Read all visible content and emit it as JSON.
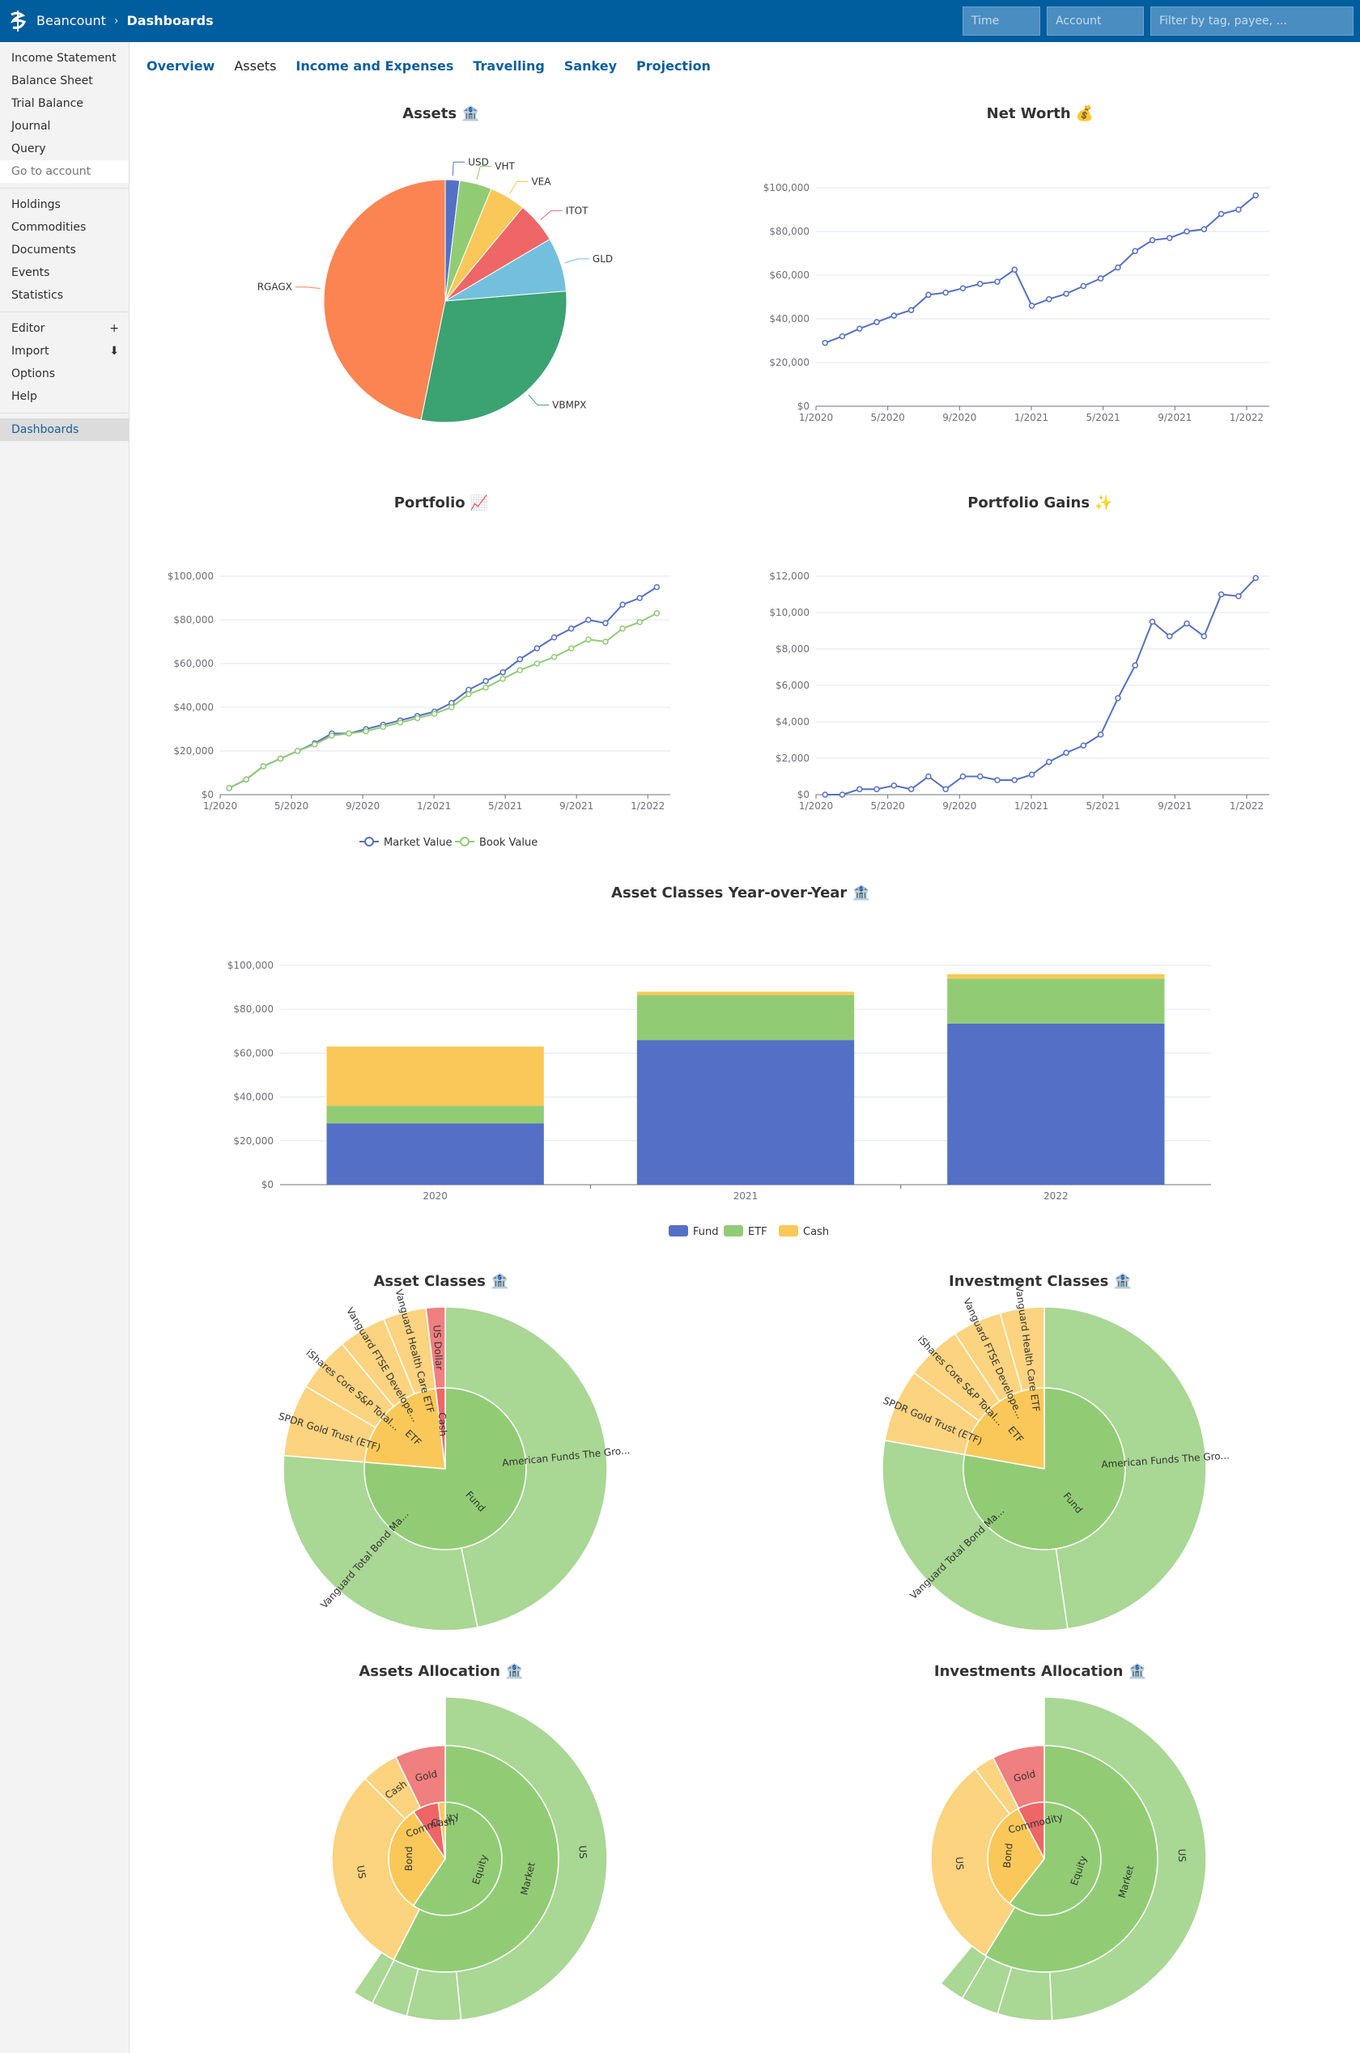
{
  "header": {
    "app_name": "Beancount",
    "separator": "›",
    "page": "Dashboards",
    "time_placeholder": "Time",
    "account_placeholder": "Account",
    "filter_placeholder": "Filter by tag, payee, ..."
  },
  "sidebar": {
    "group1": [
      "Income Statement",
      "Balance Sheet",
      "Trial Balance",
      "Journal",
      "Query"
    ],
    "go_to_account": "Go to account",
    "group2": [
      "Holdings",
      "Commodities",
      "Documents",
      "Events",
      "Statistics"
    ],
    "editor": "Editor",
    "editor_icon": "+",
    "import": "Import",
    "import_icon": "⬇",
    "options": "Options",
    "help": "Help",
    "dashboards": "Dashboards"
  },
  "tabs": [
    "Overview",
    "Assets",
    "Income and Expenses",
    "Travelling",
    "Sankey",
    "Projection"
  ],
  "colors": {
    "blue": "#5470c6",
    "green": "#91cc75",
    "yellow": "#fac858",
    "red": "#ee6666",
    "cyan": "#73c0de",
    "teal": "#3ba272",
    "orange": "#fc8452"
  },
  "chart_data": [
    {
      "id": "assets",
      "type": "pie",
      "title": "Assets 🏦",
      "slices": [
        {
          "label": "USD",
          "value": 1.9
        },
        {
          "label": "VHT",
          "value": 4.3
        },
        {
          "label": "VEA",
          "value": 4.8
        },
        {
          "label": "ITOT",
          "value": 5.5
        },
        {
          "label": "GLD",
          "value": 7.2
        },
        {
          "label": "VBMPX",
          "value": 29.5
        },
        {
          "label": "RGAGX",
          "value": 46.8
        }
      ]
    },
    {
      "id": "networth",
      "type": "line",
      "title": "Net Worth 💰",
      "ylim": [
        0,
        100000
      ],
      "yticks": [
        "$0",
        "$20,000",
        "$40,000",
        "$60,000",
        "$80,000",
        "$100,000"
      ],
      "xticks": [
        "1/2020",
        "5/2020",
        "9/2020",
        "1/2021",
        "5/2021",
        "9/2021",
        "1/2022"
      ],
      "series": [
        {
          "name": "Net Worth",
          "values": [
            29000,
            32000,
            35500,
            38500,
            41500,
            44000,
            51000,
            52000,
            54000,
            56000,
            57000,
            62500,
            46000,
            49000,
            51500,
            55000,
            58500,
            63500,
            71000,
            76000,
            77000,
            80000,
            81000,
            88000,
            90000,
            96500
          ]
        }
      ]
    },
    {
      "id": "portfolio",
      "type": "line",
      "title": "Portfolio 📈",
      "ylim": [
        0,
        100000
      ],
      "yticks": [
        "$0",
        "$20,000",
        "$40,000",
        "$60,000",
        "$80,000",
        "$100,000"
      ],
      "xticks": [
        "1/2020",
        "5/2020",
        "9/2020",
        "1/2021",
        "5/2021",
        "9/2021",
        "1/2022"
      ],
      "series": [
        {
          "name": "Market Value",
          "values": [
            3000,
            7000,
            13000,
            16500,
            20000,
            23500,
            28000,
            28000,
            30000,
            32000,
            34000,
            36000,
            38000,
            42000,
            48000,
            52000,
            56000,
            62000,
            67000,
            72000,
            76000,
            80000,
            78500,
            87000,
            90000,
            95000
          ]
        },
        {
          "name": "Book Value",
          "values": [
            3000,
            7000,
            13000,
            16500,
            20000,
            23000,
            27000,
            28000,
            29000,
            31000,
            33000,
            35000,
            37000,
            40000,
            46000,
            49000,
            53000,
            57000,
            60000,
            63000,
            67000,
            71000,
            70000,
            76000,
            79000,
            83000
          ]
        }
      ]
    },
    {
      "id": "gains",
      "type": "line",
      "title": "Portfolio Gains ✨",
      "ylim": [
        0,
        12000
      ],
      "yticks": [
        "$0",
        "$2,000",
        "$4,000",
        "$6,000",
        "$8,000",
        "$10,000",
        "$12,000"
      ],
      "xticks": [
        "1/2020",
        "5/2020",
        "9/2020",
        "1/2021",
        "5/2021",
        "9/2021",
        "1/2022"
      ],
      "series": [
        {
          "name": "Gains",
          "values": [
            0,
            0,
            300,
            300,
            500,
            300,
            1000,
            300,
            1000,
            1000,
            800,
            800,
            1100,
            1800,
            2300,
            2700,
            3300,
            5300,
            7100,
            9500,
            8700,
            9400,
            8700,
            11000,
            10900,
            11900
          ]
        }
      ]
    },
    {
      "id": "yoy",
      "type": "bar",
      "title": "Asset Classes Year-over-Year 🏦",
      "categories": [
        "2020",
        "2021",
        "2022"
      ],
      "ylim": [
        0,
        100000
      ],
      "yticks": [
        "$0",
        "$20,000",
        "$40,000",
        "$60,000",
        "$80,000",
        "$100,000"
      ],
      "series": [
        {
          "name": "Fund",
          "values": [
            28000,
            66000,
            73500
          ]
        },
        {
          "name": "ETF",
          "values": [
            8000,
            20500,
            20500
          ]
        },
        {
          "name": "Cash",
          "values": [
            27000,
            1500,
            2000
          ]
        }
      ]
    },
    {
      "id": "asset_classes",
      "type": "sunburst",
      "title": "Asset Classes 🏦",
      "inner": [
        {
          "label": "Fund",
          "value": 76.3
        },
        {
          "label": "ETF",
          "value": 21.8
        },
        {
          "label": "Cash",
          "value": 1.9
        }
      ],
      "outer": [
        {
          "label": "American Funds The Gro...",
          "value": 46.8
        },
        {
          "label": "Vanguard Total Bond Ma...",
          "value": 29.5
        },
        {
          "label": "SPDR Gold Trust (ETF)",
          "value": 7.2
        },
        {
          "label": "iShares Core S&P Total...",
          "value": 5.5
        },
        {
          "label": "Vanguard FTSE Develope...",
          "value": 4.8
        },
        {
          "label": "Vanguard Health Care ETF",
          "value": 4.3
        },
        {
          "label": "US Dollar",
          "value": 1.9
        }
      ]
    },
    {
      "id": "investment_classes",
      "type": "sunburst",
      "title": "Investment Classes 🏦",
      "inner": [
        {
          "label": "Fund",
          "value": 77.8
        },
        {
          "label": "ETF",
          "value": 22.2
        }
      ],
      "outer": [
        {
          "label": "American Funds The Gro...",
          "value": 47.7
        },
        {
          "label": "Vanguard Total Bond Ma...",
          "value": 30.1
        },
        {
          "label": "SPDR Gold Trust (ETF)",
          "value": 7.3
        },
        {
          "label": "iShares Core S&P Total...",
          "value": 5.6
        },
        {
          "label": "Vanguard FTSE Develope...",
          "value": 4.9
        },
        {
          "label": "Vanguard Health Care ETF",
          "value": 4.4
        }
      ]
    },
    {
      "id": "assets_alloc",
      "type": "sunburst",
      "title": "Assets Allocation 🏦",
      "inner": [
        {
          "label": "Equity",
          "value": 57.5
        },
        {
          "label": "Bond",
          "value": 30
        },
        {
          "label": "Commodity",
          "value": 7.2
        },
        {
          "label": "Cash",
          "value": 1.9
        }
      ],
      "middle": [
        {
          "label": "Market",
          "value": 57.5
        },
        {
          "label": "US",
          "value": 30
        },
        {
          "label": "Cash",
          "value": 5.3
        },
        {
          "label": "Gold",
          "value": 7.2
        }
      ],
      "outer": [
        {
          "label": "US",
          "value": 46.8
        },
        {
          "label": "",
          "value": 5.2
        },
        {
          "label": "",
          "value": 3.5
        },
        {
          "label": "",
          "value": 2
        }
      ]
    },
    {
      "id": "invest_alloc",
      "type": "sunburst",
      "title": "Investments Allocation 🏦",
      "inner": [
        {
          "label": "Equity",
          "value": 59
        },
        {
          "label": "Bond",
          "value": 31
        },
        {
          "label": "Commodity",
          "value": 7.5
        }
      ],
      "middle": [
        {
          "label": "Market",
          "value": 59
        },
        {
          "label": "US",
          "value": 31
        },
        {
          "label": "",
          "value": 3
        },
        {
          "label": "Gold",
          "value": 7.5
        }
      ],
      "outer": [
        {
          "label": "US",
          "value": 48
        },
        {
          "label": "",
          "value": 5.3
        },
        {
          "label": "",
          "value": 3.7
        },
        {
          "label": "",
          "value": 2.5
        }
      ]
    }
  ]
}
